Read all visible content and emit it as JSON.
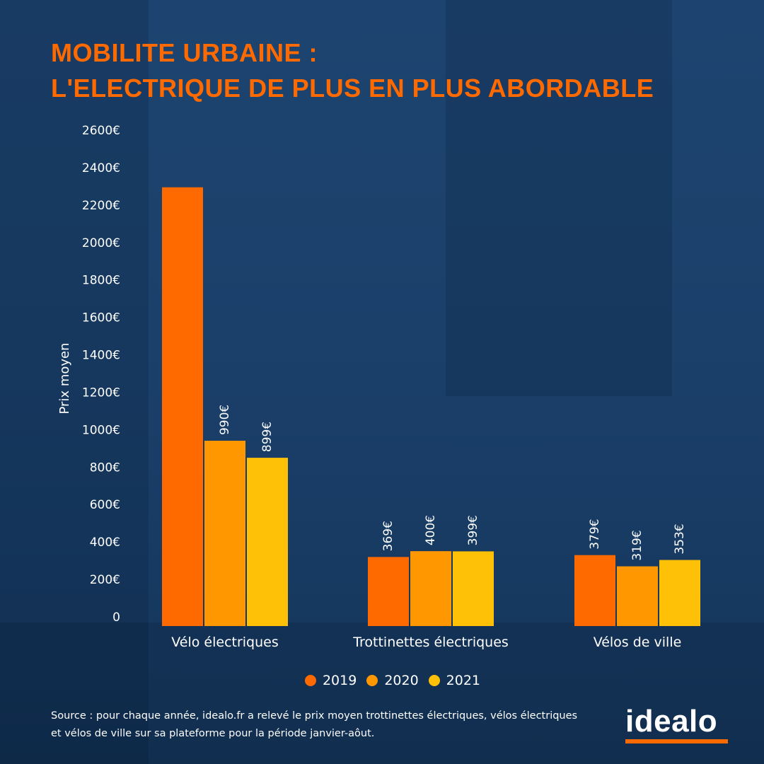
{
  "title": {
    "line1": "MOBILITE URBAINE :",
    "line2": "L'ELECTRIQUE DE PLUS EN PLUS ABORDABLE"
  },
  "colors": {
    "title": "#ff6a00",
    "2019": "#ff6a00",
    "2020": "#ff9800",
    "2021": "#ffc107",
    "background": "#1b406a"
  },
  "chart_data": {
    "type": "bar",
    "title": "MOBILITE URBAINE : L'ELECTRIQUE DE PLUS EN PLUS ABORDABLE",
    "xlabel": "",
    "ylabel": "Prix moyen",
    "ylim": [
      0,
      2600
    ],
    "yticks": [
      0,
      200,
      400,
      600,
      800,
      1000,
      1200,
      1400,
      1600,
      1800,
      2000,
      2200,
      2400,
      2600
    ],
    "ytick_labels": [
      "0",
      "200€",
      "400€",
      "600€",
      "800€",
      "1000€",
      "1200€",
      "1400€",
      "1600€",
      "1800€",
      "2000€",
      "2200€",
      "2400€",
      "2600€"
    ],
    "categories": [
      "Vélo électriques",
      "Trottinettes électriques",
      "Vélos de ville"
    ],
    "series": [
      {
        "name": "2019",
        "color": "#ff6a00",
        "values": [
          2344,
          369,
          379
        ],
        "labels": [
          "",
          "369€",
          "379€"
        ]
      },
      {
        "name": "2020",
        "color": "#ff9800",
        "values": [
          990,
          400,
          319
        ],
        "labels": [
          "990€",
          "400€",
          "319€"
        ]
      },
      {
        "name": "2021",
        "color": "#ffc107",
        "values": [
          899,
          399,
          353
        ],
        "labels": [
          "899€",
          "399€",
          "353€"
        ]
      }
    ],
    "legend": "bottom-center",
    "grid": false
  },
  "source": {
    "line1": "Source : pour chaque année, idealo.fr a relevé le prix moyen trottinettes électriques, vélos électriques",
    "line2": "et vélos de ville sur sa plateforme pour la période janvier-aôut."
  },
  "logo": {
    "text": "idealo"
  }
}
